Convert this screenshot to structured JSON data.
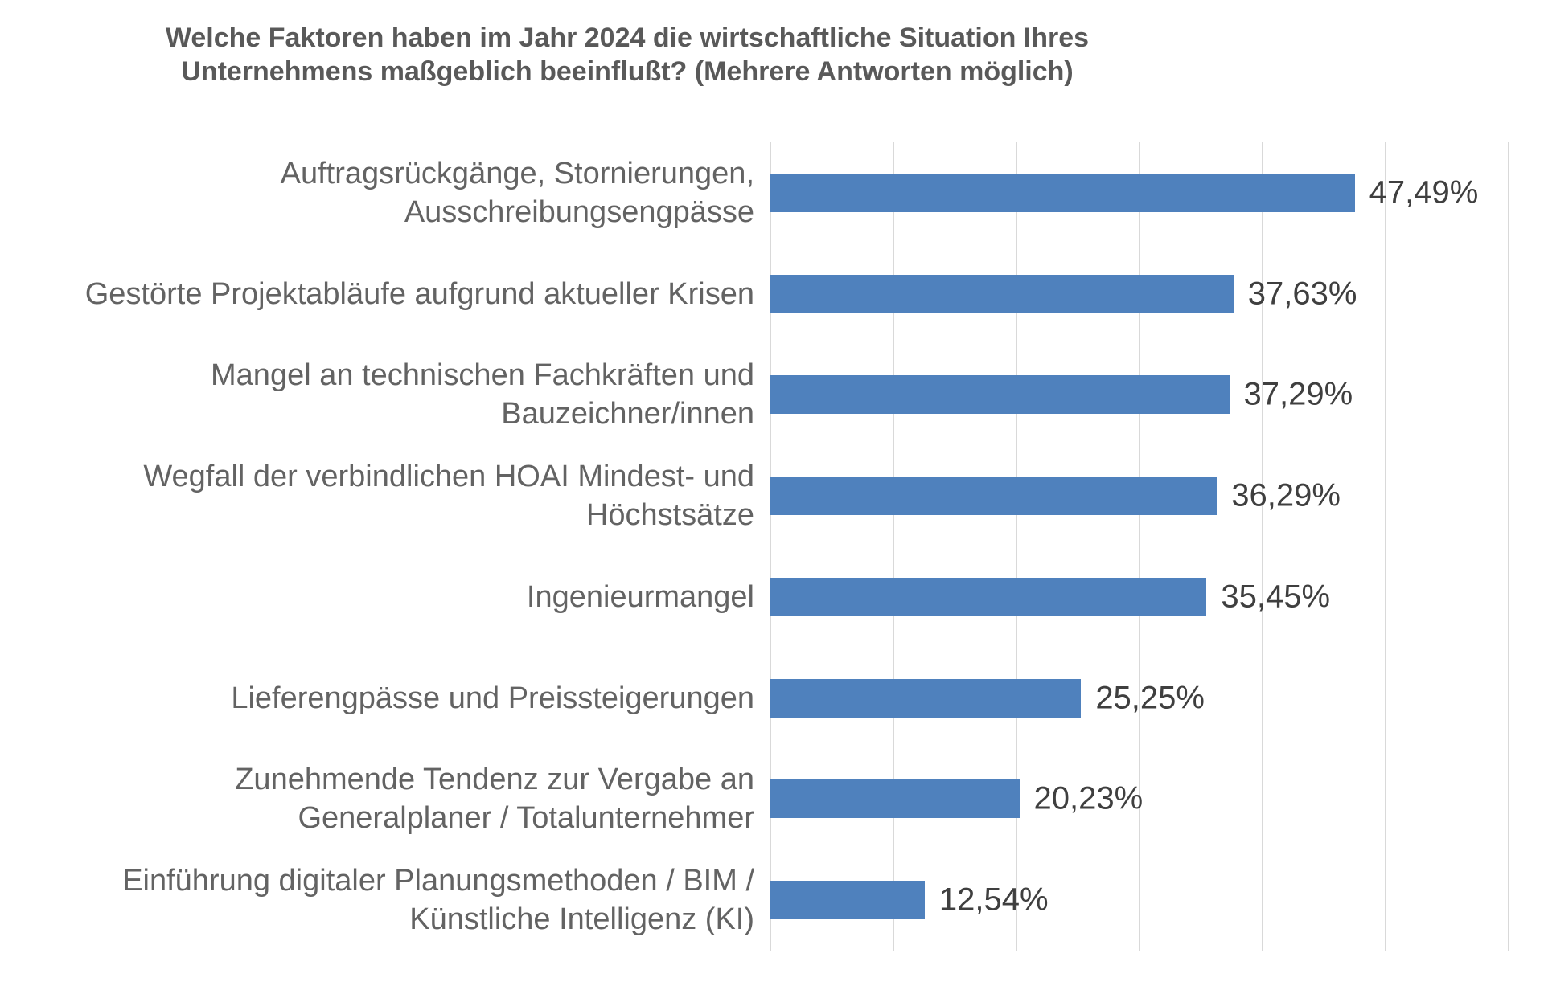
{
  "chart_data": {
    "type": "bar",
    "orientation": "horizontal",
    "title": "Welche Faktoren haben im Jahr 2024 die wirtschaftliche Situation Ihres\nUnternehmens maßgeblich beeinflußt? (Mehrere Antworten möglich)",
    "categories": [
      "Auftragsrückgänge, Stornierungen,\nAusschreibungsengpässe",
      "Gestörte Projektabläufe aufgrund aktueller Krisen",
      "Mangel an technischen Fachkräften und\nBauzeichner/innen",
      "Wegfall der verbindlichen HOAI Mindest- und\nHöchstsätze",
      "Ingenieurmangel",
      "Lieferengpässe und Preissteigerungen",
      "Zunehmende Tendenz zur Vergabe an\nGeneralplaner / Totalunternehmer",
      "Einführung digitaler Planungsmethoden / BIM /\nKünstliche Intelligenz (KI)"
    ],
    "values": [
      47.49,
      37.63,
      37.29,
      36.29,
      35.45,
      25.25,
      20.23,
      12.54
    ],
    "value_labels": [
      "47,49%",
      "37,63%",
      "37,29%",
      "36,29%",
      "35,45%",
      "25,25%",
      "20,23%",
      "12,54%"
    ],
    "xlabel": "",
    "ylabel": "",
    "xlim": [
      0,
      60
    ],
    "gridline_step": 10,
    "grid": true,
    "legend": "none",
    "bar_color": "#4F81BD",
    "gridline_color": "#D9D9D9",
    "title_color": "#595959",
    "label_color": "#636363",
    "value_color": "#3F3F3F"
  }
}
